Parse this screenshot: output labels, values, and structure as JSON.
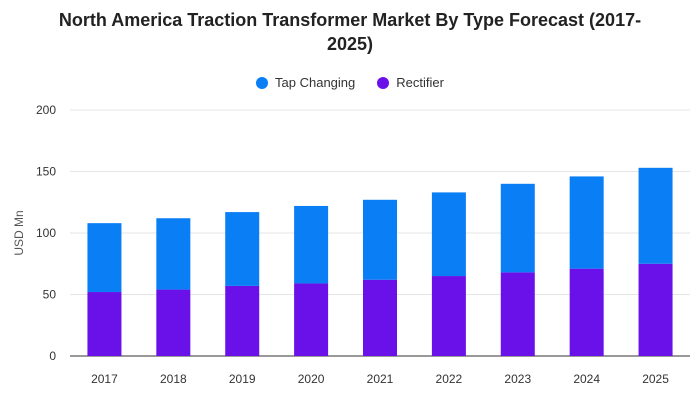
{
  "chart_data": {
    "type": "bar",
    "stacked": true,
    "title_line1": "North America Traction Transformer Market By Type Forecast (2017-",
    "title_line2": "2025)",
    "ylabel": "USD Mn",
    "ylim": [
      0,
      200
    ],
    "yticks": [
      "0",
      "50",
      "100",
      "150",
      "200"
    ],
    "ytick_values": [
      0,
      50,
      100,
      150,
      200
    ],
    "categories": [
      "2017",
      "2018",
      "2019",
      "2020",
      "2021",
      "2022",
      "2023",
      "2024",
      "2025"
    ],
    "series": [
      {
        "name": "Rectifier",
        "color": "#6a11e9",
        "values": [
          52,
          54,
          57,
          59,
          62,
          65,
          68,
          71,
          75
        ]
      },
      {
        "name": "Tap Changing",
        "color": "#0a7ef5",
        "values": [
          56,
          58,
          60,
          63,
          65,
          68,
          72,
          75,
          78
        ]
      }
    ],
    "legend": [
      {
        "name": "Tap Changing",
        "color": "#0a7ef5"
      },
      {
        "name": "Rectifier",
        "color": "#6a11e9"
      }
    ],
    "legend_position": "top-center",
    "grid": true
  }
}
